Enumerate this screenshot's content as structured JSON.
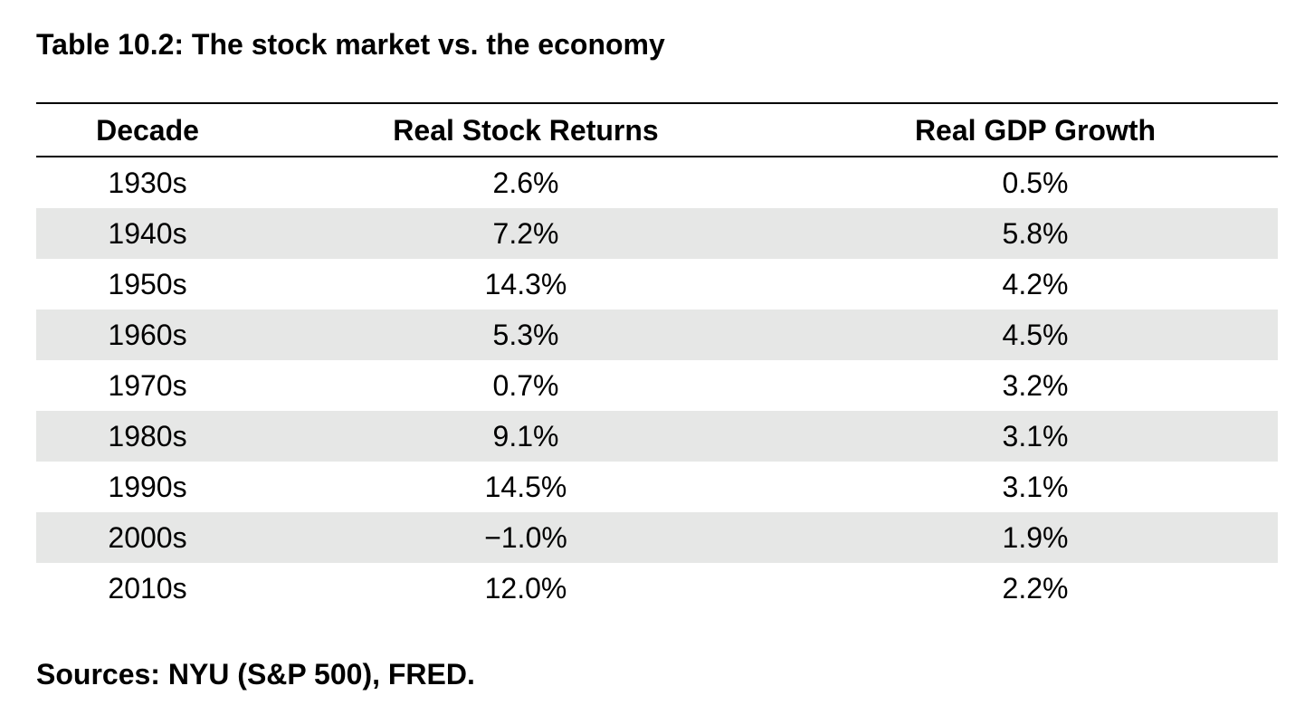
{
  "title": "Table 10.2: The stock market vs. the economy",
  "columns": [
    "Decade",
    "Real Stock Returns",
    "Real GDP Growth"
  ],
  "rows": [
    {
      "decade": "1930s",
      "stock": "2.6%",
      "gdp": "0.5%"
    },
    {
      "decade": "1940s",
      "stock": "7.2%",
      "gdp": "5.8%"
    },
    {
      "decade": "1950s",
      "stock": "14.3%",
      "gdp": "4.2%"
    },
    {
      "decade": "1960s",
      "stock": "5.3%",
      "gdp": "4.5%"
    },
    {
      "decade": "1970s",
      "stock": "0.7%",
      "gdp": "3.2%"
    },
    {
      "decade": "1980s",
      "stock": "9.1%",
      "gdp": "3.1%"
    },
    {
      "decade": "1990s",
      "stock": "14.5%",
      "gdp": "3.1%"
    },
    {
      "decade": "2000s",
      "stock": "−1.0%",
      "gdp": "1.9%"
    },
    {
      "decade": "2010s",
      "stock": "12.0%",
      "gdp": "2.2%"
    }
  ],
  "source": "Sources: NYU (S&P 500), FRED.",
  "colors": {
    "shaded_row": "#e6e7e6",
    "rule": "#000000"
  }
}
